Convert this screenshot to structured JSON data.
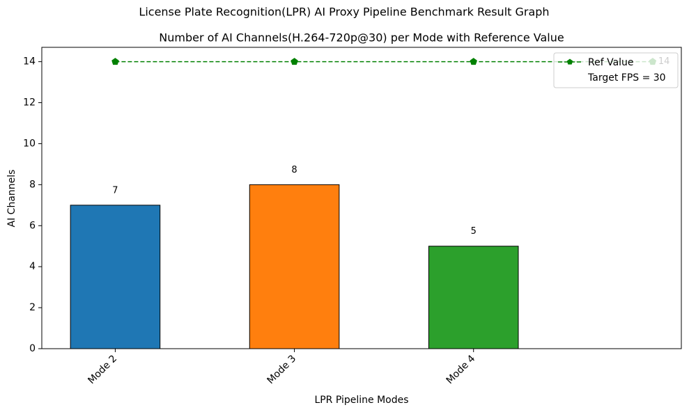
{
  "chart_data": {
    "type": "bar",
    "title": "License Plate Recognition(LPR) AI Proxy Pipeline Benchmark Result Graph",
    "subtitle": "Number of AI Channels(H.264-720p@30) per Mode with Reference Value",
    "x_label": "LPR Pipeline Modes",
    "y_label": "AI Channels",
    "categories": [
      "Mode 2",
      "Mode 3",
      "Mode 4",
      null
    ],
    "values": [
      7,
      8,
      5,
      null
    ],
    "colors": [
      "#1f77b4",
      "#ff7f0e",
      "#2ca02c"
    ],
    "reference": {
      "name": "Ref Value",
      "color": "#008000",
      "values": [
        14,
        14,
        14,
        14
      ]
    },
    "legend_note": "Target FPS = 30",
    "legend": "upper right",
    "xlim": [
      -0.41,
      3.16
    ],
    "ylim": [
      0,
      14.7
    ],
    "yticks": [
      0,
      2,
      4,
      6,
      8,
      10,
      12,
      14
    ]
  }
}
